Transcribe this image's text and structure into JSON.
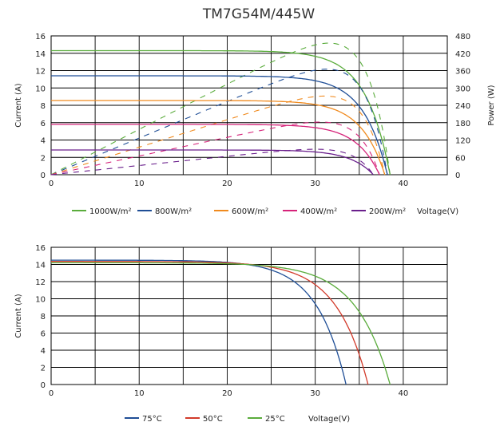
{
  "title": "TM7G54M/445W",
  "chart_data": [
    {
      "type": "line",
      "xlabel": "Voltage(V)",
      "ylabel": "Current (A)",
      "y2label": "Power (W)",
      "xlim": [
        0,
        45
      ],
      "ylim": [
        0,
        16
      ],
      "y2lim": [
        0,
        480
      ],
      "xticks": [
        0,
        10,
        20,
        30,
        40
      ],
      "yticks": [
        0,
        2,
        4,
        6,
        8,
        10,
        12,
        14,
        16
      ],
      "y2ticks": [
        0,
        60,
        120,
        180,
        240,
        300,
        360,
        420,
        480
      ],
      "grid": true,
      "legend_position": "bottom",
      "series": [
        {
          "name": "1000W/m²",
          "color": "#5aac3c",
          "isc": 14.3,
          "voc": 38.5,
          "pmax": 455
        },
        {
          "name": "800W/m²",
          "color": "#1f4e96",
          "isc": 11.4,
          "voc": 38.2,
          "pmax": 365
        },
        {
          "name": "600W/m²",
          "color": "#f08a1e",
          "isc": 8.55,
          "voc": 37.9,
          "pmax": 272
        },
        {
          "name": "400W/m²",
          "color": "#d6237a",
          "isc": 5.8,
          "voc": 37.3,
          "pmax": 182
        },
        {
          "name": "200W/m²",
          "color": "#6a1f8c",
          "isc": 2.85,
          "voc": 36.6,
          "pmax": 88
        }
      ]
    },
    {
      "type": "line",
      "xlabel": "Voltage(V)",
      "ylabel": "Current (A)",
      "xlim": [
        0,
        45
      ],
      "ylim": [
        0,
        16
      ],
      "xticks": [
        0,
        10,
        20,
        30,
        40
      ],
      "yticks": [
        0,
        2,
        4,
        6,
        8,
        10,
        12,
        14,
        16
      ],
      "grid": true,
      "legend_position": "bottom",
      "series": [
        {
          "name": "75°C",
          "color": "#1f4e96",
          "isc": 14.5,
          "voc": 33.5
        },
        {
          "name": "50°C",
          "color": "#d23a2a",
          "isc": 14.35,
          "voc": 36.0
        },
        {
          "name": "25°C",
          "color": "#5aac3c",
          "isc": 14.2,
          "voc": 38.5
        }
      ]
    }
  ]
}
